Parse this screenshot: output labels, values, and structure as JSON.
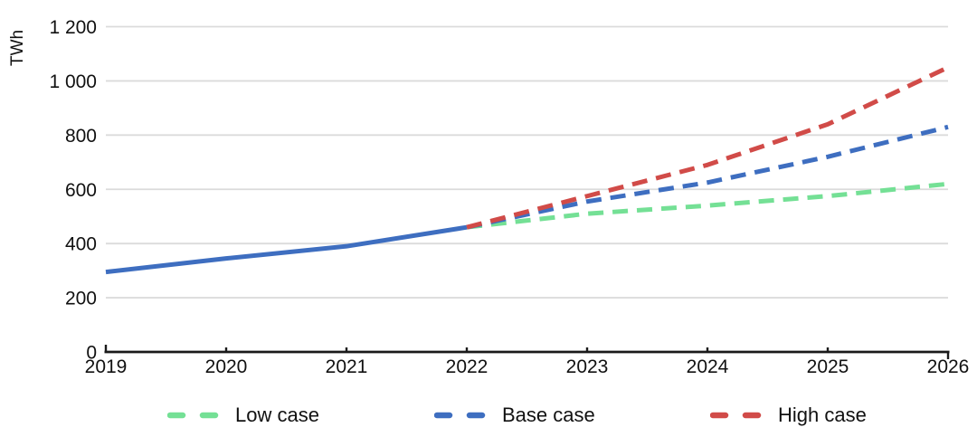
{
  "chart_data": {
    "type": "line",
    "title": "",
    "ylabel": "TWh",
    "xlabel": "",
    "x_ticks": [
      2019,
      2020,
      2021,
      2022,
      2023,
      2024,
      2025,
      2026
    ],
    "ylim": [
      0,
      1200
    ],
    "y_tick_step": 200,
    "y_tick_labels": [
      "0",
      "200",
      "400",
      "600",
      "800",
      "1 000",
      "1 200"
    ],
    "grid": "horizontal",
    "series": [
      {
        "key": "actual",
        "style": "solid",
        "color": "#3E6EC0",
        "x": [
          2019,
          2020,
          2021,
          2022
        ],
        "values": [
          295,
          345,
          390,
          460
        ]
      },
      {
        "key": "low",
        "style": "dashed",
        "color": "#74E095",
        "x": [
          2022,
          2023,
          2024,
          2025,
          2026
        ],
        "values": [
          460,
          510,
          540,
          575,
          620
        ]
      },
      {
        "key": "base",
        "style": "dashed",
        "color": "#3E6EC0",
        "x": [
          2022,
          2023,
          2024,
          2025,
          2026
        ],
        "values": [
          460,
          555,
          625,
          720,
          830
        ]
      },
      {
        "key": "high",
        "style": "dashed",
        "color": "#D14B48",
        "x": [
          2022,
          2023,
          2024,
          2025,
          2026
        ],
        "values": [
          460,
          575,
          690,
          840,
          1050
        ]
      }
    ],
    "legend": {
      "position": "bottom",
      "items": [
        {
          "label": "Low case",
          "color": "#74E095"
        },
        {
          "label": "Base case",
          "color": "#3E6EC0"
        },
        {
          "label": "High case",
          "color": "#D14B48"
        }
      ]
    }
  },
  "colors": {
    "background": "#FFFFFF",
    "gridline": "#DBDBDB",
    "axis": "#1A1A1A",
    "text": "#111111"
  }
}
